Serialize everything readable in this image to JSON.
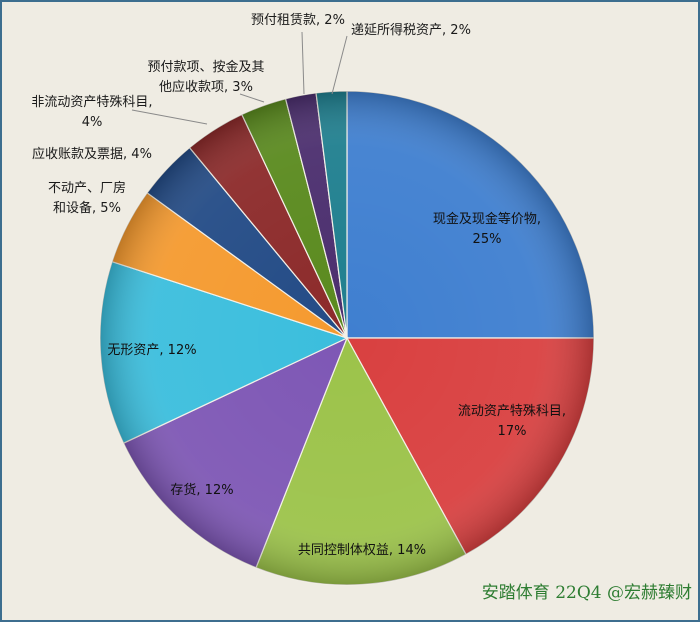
{
  "chart_data": {
    "type": "pie",
    "title": "",
    "categories": [
      "现金及现金等价物",
      "流动资产特殊科目",
      "共同控制体权益",
      "存货",
      "无形资产",
      "不动产、厂房和设备",
      "应收账款及票据",
      "非流动资产特殊科目",
      "预付款项、按金及其他应收款项",
      "预付租赁款",
      "递延所得税资产"
    ],
    "values": [
      25,
      17,
      14,
      12,
      12,
      5,
      4,
      4,
      3,
      2,
      2
    ],
    "value_labels": [
      "25%",
      "17%",
      "14%",
      "12%",
      "12%",
      "5%",
      "4%",
      "4%",
      "3%",
      "2%",
      "2%"
    ],
    "colors": [
      "#3f7fd0",
      "#d94040",
      "#9cc34a",
      "#7e57b5",
      "#3bbedd",
      "#f59a2f",
      "#234b86",
      "#8c2a2a",
      "#5a8a1e",
      "#4b2e6e",
      "#1f7f8f"
    ],
    "legend": "none",
    "data_labels": [
      {
        "lines": [
          "现金及现金等价物,",
          "25%"
        ]
      },
      {
        "lines": [
          "流动资产特殊科目,",
          "17%"
        ]
      },
      {
        "lines": [
          "共同控制体权益, 14%"
        ]
      },
      {
        "lines": [
          "存货, 12%"
        ]
      },
      {
        "lines": [
          "无形资产, 12%"
        ]
      },
      {
        "lines": [
          "不动产、厂房",
          "和设备, 5%"
        ]
      },
      {
        "lines": [
          "应收账款及票据, 4%"
        ]
      },
      {
        "lines": [
          "非流动资产特殊科目,",
          "4%"
        ]
      },
      {
        "lines": [
          "预付款项、按金及其",
          "他应收款项, 3%"
        ]
      },
      {
        "lines": [
          "预付租赁款, 2%"
        ]
      },
      {
        "lines": [
          "递延所得税资产, 2%"
        ]
      }
    ]
  },
  "watermark": "安踏体育 22Q4 @宏赫臻财"
}
